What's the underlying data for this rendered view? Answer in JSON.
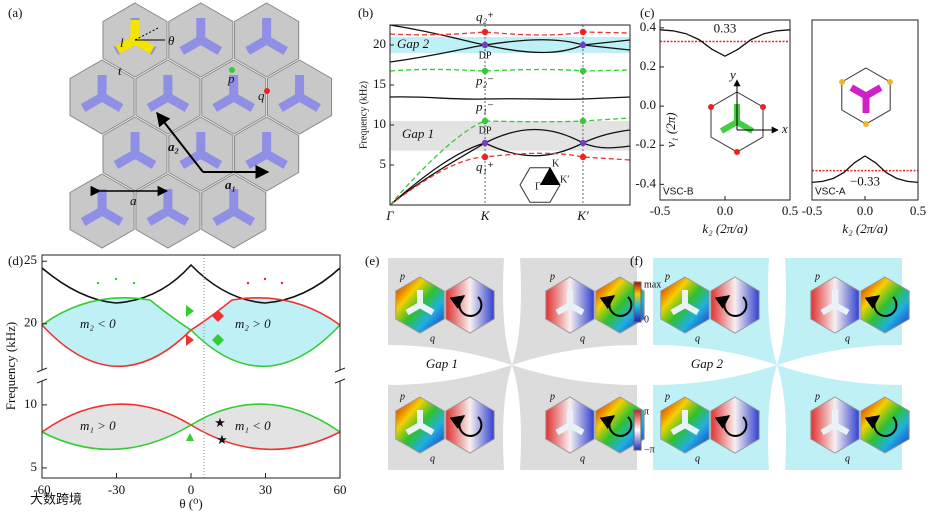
{
  "figure": {
    "a": {
      "label": "(a)",
      "l": "l",
      "theta": "θ",
      "t": "t",
      "p": "p",
      "q": "q",
      "a2": "a₂",
      "a1": "a₁",
      "a": "a"
    },
    "b": {
      "label": "(b)",
      "ylabel": "Frequency (kHz)",
      "ylim": [
        0,
        22.5
      ],
      "yticks": [
        5,
        10,
        15,
        20
      ],
      "kpoints": [
        "Γ",
        "K",
        "K′"
      ],
      "gap2": "Gap 2",
      "gap1": "Gap 1",
      "dp": "DP",
      "q2": "q₂⁺",
      "p2": "p₂⁻",
      "p1": "p₁⁻",
      "q1": "q₁⁺",
      "inset": [
        "Γ",
        "K",
        "K′"
      ]
    },
    "c": {
      "label": "(c)",
      "ylabel": "v₁ (2π)",
      "xlabel": "k₂ (2π/a)",
      "ylim": [
        -0.48,
        0.44
      ],
      "yticks": [
        0.4,
        0.2,
        {
          "value": 0,
          "label": "0.0"
        },
        -0.2,
        -0.4
      ],
      "xlim": [
        -0.5,
        0.5
      ],
      "xticks": [
        -0.5,
        {
          "value": 0,
          "label": "0.0"
        },
        0.5
      ],
      "k": [
        -0.5,
        -0.4,
        -0.3,
        -0.2,
        -0.1,
        0,
        0.1,
        0.2,
        0.3,
        0.4,
        0.5
      ],
      "panels": [
        {
          "name": "VSC-B",
          "level": 0.33,
          "level_label": "0.33",
          "x": "x",
          "y": "y",
          "values": [
            0.39,
            0.385,
            0.37,
            0.34,
            0.29,
            0.255,
            0.29,
            0.34,
            0.37,
            0.385,
            0.39
          ]
        },
        {
          "name": "VSC-A",
          "level": -0.33,
          "level_label": "−0.33",
          "values": [
            -0.39,
            -0.385,
            -0.37,
            -0.34,
            -0.29,
            -0.255,
            -0.29,
            -0.34,
            -0.37,
            -0.385,
            -0.39
          ]
        }
      ]
    },
    "d": {
      "label": "(d)",
      "ylabel": "Frequency (kHz)",
      "xlabel": "θ (⁰)",
      "xlim": [
        -60,
        60
      ],
      "xticks": [
        -60,
        -30,
        0,
        30,
        60
      ],
      "yticks": [
        5,
        10,
        20,
        25
      ],
      "ylim_lower": [
        4.2,
        11.5
      ],
      "ylim_upper": [
        17.5,
        25.5
      ],
      "regions": [
        "m₂ < 0",
        "m₂ > 0",
        "m₁ > 0",
        "m₁ < 0"
      ]
    },
    "e": {
      "label": "(e)",
      "gap": "Gap 1",
      "max": "max",
      "zero": "0",
      "pi": "π",
      "mpi": "−π",
      "p": "p",
      "q": "q"
    },
    "f": {
      "label": "(f)",
      "gap": "Gap 2",
      "p": "p",
      "q": "q"
    },
    "watermark": "大数跨境"
  }
}
